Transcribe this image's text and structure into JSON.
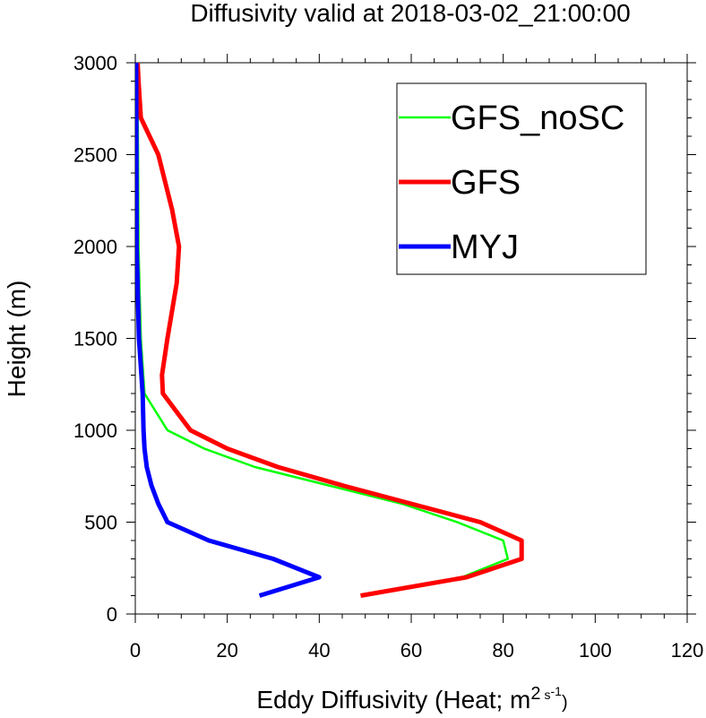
{
  "chart_data": {
    "type": "line",
    "title": "Diffusivity valid at 2018-03-02_21:00:00",
    "xlabel": "Eddy Diffusivity (Heat; m",
    "xlabel_unit_sup1": "2",
    "xlabel_unit_s": "s",
    "xlabel_unit_sup2": "-1",
    "xlabel_close": ")",
    "ylabel": "Height (m)",
    "xlim": [
      0,
      120
    ],
    "ylim": [
      0,
      3000
    ],
    "xticks": [
      0,
      20,
      40,
      60,
      80,
      100,
      120
    ],
    "yticks": [
      0,
      500,
      1000,
      1500,
      2000,
      2500,
      3000
    ],
    "legend_position": "top-right",
    "grid": false,
    "series": [
      {
        "name": "GFS_noSC",
        "color": "#00ff00",
        "line_width": 2.5,
        "x": [
          49,
          71,
          81,
          80,
          70,
          58,
          42,
          26,
          15,
          7,
          2,
          1.2,
          0.9,
          0.7,
          0.6,
          0.5,
          0.5
        ],
        "y": [
          100,
          200,
          300,
          400,
          500,
          600,
          700,
          800,
          900,
          1000,
          1200,
          1500,
          1800,
          2000,
          2500,
          2800,
          3000
        ]
      },
      {
        "name": "GFS",
        "color": "#ff0000",
        "line_width": 5,
        "x": [
          49,
          72,
          84,
          84,
          75,
          60,
          45,
          31,
          20,
          12,
          6,
          5.8,
          7,
          9,
          9.5,
          8,
          5,
          1.2,
          0.7,
          0.5
        ],
        "y": [
          100,
          200,
          300,
          400,
          500,
          600,
          700,
          800,
          900,
          1000,
          1200,
          1300,
          1500,
          1800,
          2000,
          2200,
          2500,
          2700,
          2900,
          3000
        ]
      },
      {
        "name": "MYJ",
        "color": "#0000ff",
        "line_width": 5,
        "x": [
          27,
          40,
          30,
          16,
          7,
          5,
          3.5,
          2.5,
          2,
          1.8,
          1.6,
          0.8,
          0.3,
          0.2
        ],
        "y": [
          100,
          200,
          300,
          400,
          500,
          600,
          700,
          800,
          900,
          1000,
          1200,
          1500,
          2000,
          3000
        ]
      }
    ]
  }
}
